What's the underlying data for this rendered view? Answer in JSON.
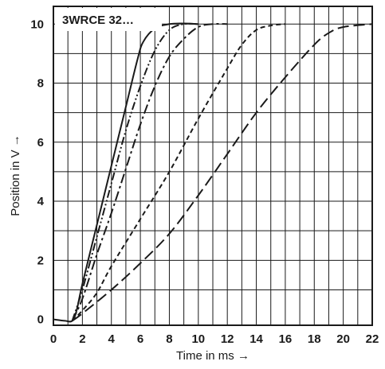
{
  "chart_data": {
    "type": "line",
    "title": "3WRCE 32…",
    "xlabel": "Time in ms →",
    "ylabel": "Position in V →",
    "xlim": [
      0,
      22
    ],
    "ylim": [
      -0.2,
      10.6
    ],
    "xticks": [
      0,
      2,
      4,
      6,
      8,
      10,
      12,
      14,
      16,
      18,
      20,
      22
    ],
    "yticks": [
      0,
      2,
      4,
      6,
      8,
      10
    ],
    "grid": true,
    "legend": "none",
    "series": [
      {
        "style": "solid",
        "points": [
          [
            0,
            0
          ],
          [
            0.8,
            -0.05
          ],
          [
            1.3,
            -0.05
          ],
          [
            1.6,
            0.3
          ],
          [
            2,
            1.2
          ],
          [
            3,
            3.2
          ],
          [
            4,
            5.2
          ],
          [
            5,
            7.2
          ],
          [
            5.8,
            8.8
          ],
          [
            6.2,
            9.4
          ],
          [
            7,
            9.85
          ],
          [
            8,
            10.0
          ],
          [
            9,
            10.02
          ],
          [
            10,
            10.0
          ]
        ]
      },
      {
        "style": "dash-dot-dot",
        "points": [
          [
            1.3,
            -0.05
          ],
          [
            2,
            1.0
          ],
          [
            3,
            2.8
          ],
          [
            4,
            4.6
          ],
          [
            5,
            6.4
          ],
          [
            6,
            7.9
          ],
          [
            7,
            9.1
          ],
          [
            8,
            9.8
          ],
          [
            9,
            10.0
          ],
          [
            10,
            10.0
          ]
        ]
      },
      {
        "style": "dash-dot",
        "points": [
          [
            1.3,
            -0.05
          ],
          [
            2,
            0.7
          ],
          [
            3,
            2.2
          ],
          [
            4,
            3.6
          ],
          [
            5,
            5.1
          ],
          [
            6,
            6.6
          ],
          [
            7,
            7.9
          ],
          [
            8,
            8.9
          ],
          [
            9,
            9.5
          ],
          [
            10,
            9.9
          ],
          [
            11,
            10.0
          ],
          [
            12,
            10.0
          ]
        ]
      },
      {
        "style": "short-dash",
        "points": [
          [
            1.3,
            -0.05
          ],
          [
            2,
            0.3
          ],
          [
            3,
            0.9
          ],
          [
            4,
            1.8
          ],
          [
            6,
            3.4
          ],
          [
            8,
            5.0
          ],
          [
            10,
            6.8
          ],
          [
            12,
            8.5
          ],
          [
            13,
            9.3
          ],
          [
            14,
            9.8
          ],
          [
            15,
            9.95
          ],
          [
            16,
            10.0
          ]
        ]
      },
      {
        "style": "long-dash",
        "points": [
          [
            1.3,
            -0.05
          ],
          [
            2,
            0.2
          ],
          [
            4,
            1.0
          ],
          [
            6,
            1.9
          ],
          [
            8,
            2.9
          ],
          [
            10,
            4.2
          ],
          [
            12,
            5.6
          ],
          [
            14,
            7.0
          ],
          [
            16,
            8.2
          ],
          [
            18,
            9.3
          ],
          [
            19,
            9.7
          ],
          [
            20,
            9.9
          ],
          [
            22,
            10.0
          ]
        ]
      }
    ]
  },
  "colors": {
    "line": "#1a1a1a",
    "grid": "#1a1a1a",
    "background": "#ffffff"
  }
}
